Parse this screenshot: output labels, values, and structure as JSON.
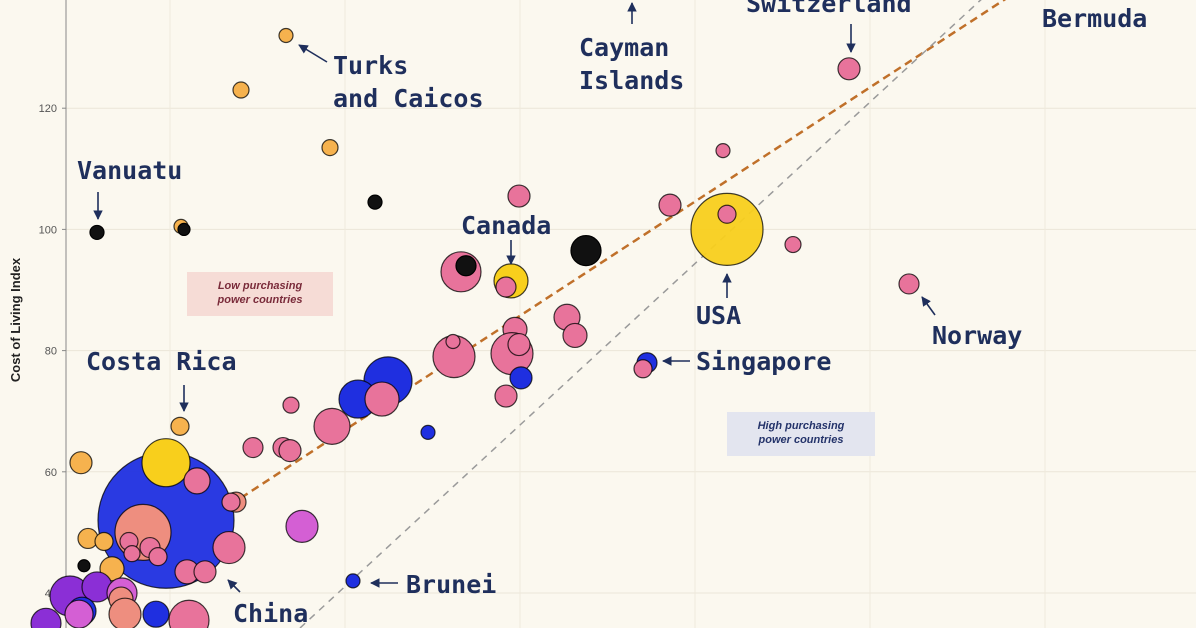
{
  "chart_data": {
    "type": "scatter",
    "title": "",
    "xlabel": "",
    "ylabel": "Cost of Living Index",
    "ylim": [
      34,
      139
    ],
    "y_ticks": [
      "40",
      "60",
      "80",
      "100",
      "120"
    ],
    "grid": true,
    "reference_lines": [
      {
        "name": "trend",
        "style": "dashed",
        "color": "#c0702a"
      },
      {
        "name": "parity",
        "style": "dashed",
        "color": "#9a9a9a"
      }
    ],
    "zones": [
      {
        "text": "Low purchasing\npower countries",
        "bg": "#f6dcd6",
        "color": "#7a2b3a"
      },
      {
        "text": "High purchasing\npower countries",
        "bg": "#e3e5ef",
        "color": "#24336a"
      }
    ],
    "colors": {
      "pink": "#e8739b",
      "orange": "#f6b24e",
      "black": "#111111",
      "blue": "#1f2fe0",
      "yellow": "#f8cf1c",
      "purple": "#8b2fd6",
      "salmon": "#ee8e7f",
      "magenta": "#d45fd4",
      "label": "#1f2f5c"
    },
    "annotations": [
      {
        "text": "Switzerland",
        "arrow": "down"
      },
      {
        "text": "Bermuda",
        "arrow": "none"
      },
      {
        "text": "Cayman\nIslands",
        "arrow": "up"
      },
      {
        "text": "Turks\nand Caicos",
        "arrow": "left"
      },
      {
        "text": "Vanuatu",
        "arrow": "down"
      },
      {
        "text": "Canada",
        "arrow": "down"
      },
      {
        "text": "USA",
        "arrow": "up"
      },
      {
        "text": "Norway",
        "arrow": "up-left"
      },
      {
        "text": "Costa Rica",
        "arrow": "down"
      },
      {
        "text": "Singapore",
        "arrow": "left"
      },
      {
        "text": "Brunei",
        "arrow": "left"
      },
      {
        "text": "China",
        "arrow": "up-left"
      }
    ],
    "points": [
      {
        "label": "Switzerland",
        "y": 126.5,
        "color": "pink",
        "size": 11
      },
      {
        "label": "Turks and Caicos",
        "y": 132,
        "color": "orange",
        "size": 7
      },
      {
        "label": "",
        "y": 123,
        "color": "orange",
        "size": 8
      },
      {
        "label": "",
        "y": 113.5,
        "color": "orange",
        "size": 8
      },
      {
        "label": "",
        "y": 113,
        "color": "pink",
        "size": 7
      },
      {
        "label": "",
        "y": 104.5,
        "color": "black",
        "size": 7
      },
      {
        "label": "",
        "y": 105.5,
        "color": "pink",
        "size": 11
      },
      {
        "label": "",
        "y": 104,
        "color": "pink",
        "size": 11
      },
      {
        "label": "Vanuatu",
        "y": 99.5,
        "color": "black",
        "size": 7
      },
      {
        "label": "",
        "y": 100.5,
        "color": "orange",
        "size": 7
      },
      {
        "label": "",
        "y": 100,
        "color": "black",
        "size": 6
      },
      {
        "label": "USA",
        "y": 100,
        "color": "yellow",
        "size": 36
      },
      {
        "label": "",
        "y": 102.5,
        "color": "pink",
        "size": 9
      },
      {
        "label": "",
        "y": 97.5,
        "color": "pink",
        "size": 8
      },
      {
        "label": "",
        "y": 96.5,
        "color": "black",
        "size": 15
      },
      {
        "label": "",
        "y": 93,
        "color": "pink",
        "size": 20
      },
      {
        "label": "",
        "y": 94,
        "color": "black",
        "size": 10
      },
      {
        "label": "Canada",
        "y": 91.5,
        "color": "yellow",
        "size": 17
      },
      {
        "label": "",
        "y": 90.5,
        "color": "pink",
        "size": 10
      },
      {
        "label": "Norway",
        "y": 91,
        "color": "pink",
        "size": 10
      },
      {
        "label": "",
        "y": 85.5,
        "color": "pink",
        "size": 13
      },
      {
        "label": "",
        "y": 82.5,
        "color": "pink",
        "size": 12
      },
      {
        "label": "",
        "y": 83.5,
        "color": "pink",
        "size": 12
      },
      {
        "label": "",
        "y": 79.5,
        "color": "pink",
        "size": 21
      },
      {
        "label": "",
        "y": 81,
        "color": "pink",
        "size": 11
      },
      {
        "label": "",
        "y": 79,
        "color": "pink",
        "size": 21
      },
      {
        "label": "",
        "y": 81.5,
        "color": "pink",
        "size": 7
      },
      {
        "label": "",
        "y": 75.5,
        "color": "blue",
        "size": 11
      },
      {
        "label": "",
        "y": 72.5,
        "color": "pink",
        "size": 11
      },
      {
        "label": "Singapore",
        "y": 78,
        "color": "blue",
        "size": 10
      },
      {
        "label": "",
        "y": 77,
        "color": "pink",
        "size": 9
      },
      {
        "label": "",
        "y": 75,
        "color": "blue",
        "size": 24
      },
      {
        "label": "",
        "y": 72,
        "color": "blue",
        "size": 19
      },
      {
        "label": "",
        "y": 72,
        "color": "pink",
        "size": 17
      },
      {
        "label": "",
        "y": 71,
        "color": "pink",
        "size": 8
      },
      {
        "label": "",
        "y": 66.5,
        "color": "blue",
        "size": 7
      },
      {
        "label": "",
        "y": 67.5,
        "color": "pink",
        "size": 18
      },
      {
        "label": "",
        "y": 64,
        "color": "pink",
        "size": 10
      },
      {
        "label": "",
        "y": 64,
        "color": "pink",
        "size": 10
      },
      {
        "label": "",
        "y": 63.5,
        "color": "pink",
        "size": 11
      },
      {
        "label": "Costa Rica",
        "y": 67.5,
        "color": "orange",
        "size": 9
      },
      {
        "label": "",
        "y": 61.5,
        "color": "orange",
        "size": 11
      },
      {
        "label": "China",
        "y": 52,
        "color": "blue",
        "size": 68
      },
      {
        "label": "",
        "y": 61.5,
        "color": "yellow",
        "size": 24
      },
      {
        "label": "",
        "y": 58.5,
        "color": "pink",
        "size": 13
      },
      {
        "label": "",
        "y": 55,
        "color": "salmon",
        "size": 10
      },
      {
        "label": "",
        "y": 55,
        "color": "pink",
        "size": 9
      },
      {
        "label": "",
        "y": 50,
        "color": "salmon",
        "size": 28
      },
      {
        "label": "",
        "y": 51,
        "color": "magenta",
        "size": 16
      },
      {
        "label": "",
        "y": 47.5,
        "color": "pink",
        "size": 16
      },
      {
        "label": "",
        "y": 49,
        "color": "orange",
        "size": 10
      },
      {
        "label": "",
        "y": 48.5,
        "color": "orange",
        "size": 9
      },
      {
        "label": "",
        "y": 48.5,
        "color": "pink",
        "size": 9
      },
      {
        "label": "",
        "y": 47.5,
        "color": "pink",
        "size": 10
      },
      {
        "label": "",
        "y": 46.5,
        "color": "pink",
        "size": 8
      },
      {
        "label": "",
        "y": 46,
        "color": "pink",
        "size": 9
      },
      {
        "label": "",
        "y": 44,
        "color": "orange",
        "size": 12
      },
      {
        "label": "",
        "y": 44.5,
        "color": "black",
        "size": 6
      },
      {
        "label": "",
        "y": 43.5,
        "color": "pink",
        "size": 12
      },
      {
        "label": "",
        "y": 43.5,
        "color": "pink",
        "size": 11
      },
      {
        "label": "Brunei",
        "y": 42,
        "color": "blue",
        "size": 7
      },
      {
        "label": "",
        "y": 39.5,
        "color": "purple",
        "size": 20
      },
      {
        "label": "",
        "y": 41,
        "color": "purple",
        "size": 15
      },
      {
        "label": "",
        "y": 40,
        "color": "magenta",
        "size": 15
      },
      {
        "label": "",
        "y": 39,
        "color": "salmon",
        "size": 12
      },
      {
        "label": "",
        "y": 37,
        "color": "blue",
        "size": 14
      },
      {
        "label": "",
        "y": 36.5,
        "color": "salmon",
        "size": 16
      },
      {
        "label": "",
        "y": 36.5,
        "color": "magenta",
        "size": 14
      },
      {
        "label": "",
        "y": 36.5,
        "color": "blue",
        "size": 13
      },
      {
        "label": "",
        "y": 35.5,
        "color": "pink",
        "size": 20
      },
      {
        "label": "",
        "y": 35,
        "color": "purple",
        "size": 15
      }
    ]
  }
}
